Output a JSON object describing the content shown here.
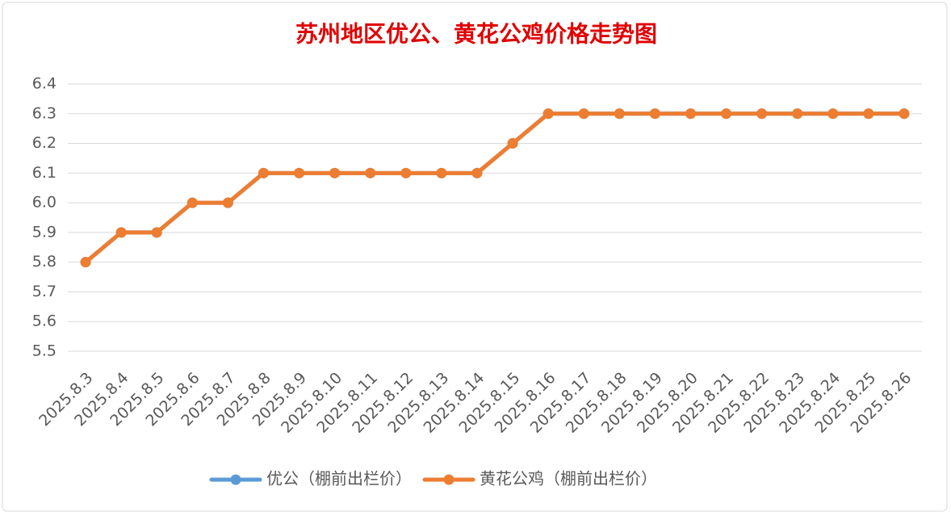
{
  "chart_data": {
    "type": "line",
    "title": "苏州地区优公、黄花公鸡价格走势图",
    "categories": [
      "2025.8.3",
      "2025.8.4",
      "2025.8.5",
      "2025.8.6",
      "2025.8.7",
      "2025.8.8",
      "2025.8.9",
      "2025.8.10",
      "2025.8.11",
      "2025.8.12",
      "2025.8.13",
      "2025.8.14",
      "2025.8.15",
      "2025.8.16",
      "2025.8.17",
      "2025.8.18",
      "2025.8.19",
      "2025.8.20",
      "2025.8.21",
      "2025.8.22",
      "2025.8.23",
      "2025.8.24",
      "2025.8.25",
      "2025.8.26"
    ],
    "series": [
      {
        "name": "优公（棚前出栏价）",
        "color": "#5b9bd5",
        "values": [
          5.8,
          5.9,
          5.9,
          6.0,
          6.0,
          6.1,
          6.1,
          6.1,
          6.1,
          6.1,
          6.1,
          6.1,
          6.2,
          6.3,
          6.3,
          6.3,
          6.3,
          6.3,
          6.3,
          6.3,
          6.3,
          6.3,
          6.3,
          6.3
        ]
      },
      {
        "name": "黄花公鸡（棚前出栏价）",
        "color": "#ed7d31",
        "values": [
          5.8,
          5.9,
          5.9,
          6.0,
          6.0,
          6.1,
          6.1,
          6.1,
          6.1,
          6.1,
          6.1,
          6.1,
          6.2,
          6.3,
          6.3,
          6.3,
          6.3,
          6.3,
          6.3,
          6.3,
          6.3,
          6.3,
          6.3,
          6.3
        ]
      }
    ],
    "ylim": [
      5.5,
      6.4
    ],
    "yticks": [
      5.5,
      5.6,
      5.7,
      5.8,
      5.9,
      {
        "value": 6,
        "label": "6.0"
      },
      6.1,
      6.2,
      6.3,
      6.4
    ],
    "grid": true,
    "legend": "bottom"
  }
}
